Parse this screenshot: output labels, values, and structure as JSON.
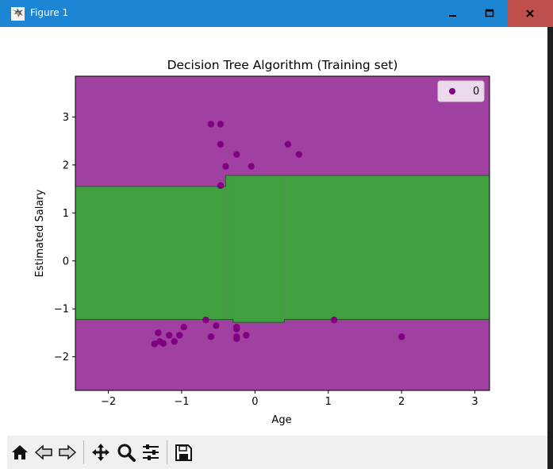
{
  "window": {
    "title": "Figure 1",
    "icons": [
      "figure-app-icon",
      "minimize-icon",
      "maximize-icon",
      "close-icon"
    ]
  },
  "toolbar": {
    "buttons": [
      "home-icon",
      "back-icon",
      "forward-icon",
      "pan-icon",
      "zoom-icon",
      "subplots-icon",
      "save-icon"
    ]
  },
  "chart_data": {
    "type": "scatter",
    "title": "Decision Tree Algorithm (Training set)",
    "xlabel": "Age",
    "ylabel": "Estimated Salary",
    "xlim": [
      -2.45,
      3.2
    ],
    "ylim": [
      -2.7,
      3.85
    ],
    "xticks": [
      -2,
      -1,
      0,
      1,
      2,
      3
    ],
    "xtick_labels": [
      "−2",
      "−1",
      "0",
      "1",
      "2",
      "3"
    ],
    "yticks": [
      -2,
      -1,
      0,
      1,
      2,
      3
    ],
    "ytick_labels": [
      "−2",
      "−1",
      "0",
      "1",
      "2",
      "3"
    ],
    "grid": false,
    "legend": {
      "entries": [
        "0"
      ],
      "location": "top-right"
    },
    "colors": {
      "background_region": "#a040a0",
      "class1_region": "#40a040",
      "points": "#800080"
    },
    "decision_regions": {
      "class_0_color": "#a040a0",
      "class_1_color": "#40a040",
      "class_1_band": [
        {
          "x_from": -2.45,
          "x_to": -0.4,
          "y_from": -1.22,
          "y_to": 1.55
        },
        {
          "x_from": -0.4,
          "x_to": -0.3,
          "y_from": -1.22,
          "y_to": 1.78
        },
        {
          "x_from": -0.3,
          "x_to": 0.4,
          "y_from": -1.28,
          "y_to": 1.78
        },
        {
          "x_from": 0.4,
          "x_to": 3.2,
          "y_from": -1.22,
          "y_to": 1.78
        }
      ]
    },
    "series": [
      {
        "name": "0",
        "color": "#800080",
        "x": [
          -0.6,
          -0.47,
          -0.47,
          -0.4,
          -0.25,
          -0.05,
          -0.47,
          0.45,
          0.6,
          -1.37,
          -1.3,
          -1.32,
          -1.25,
          -1.17,
          -1.1,
          -1.03,
          -0.97,
          -0.67,
          -0.6,
          -0.53,
          -0.25,
          -0.25,
          -0.25,
          -0.25,
          -0.12,
          1.08,
          2.0
        ],
        "y": [
          2.85,
          2.85,
          2.43,
          1.97,
          2.22,
          1.97,
          1.57,
          2.43,
          2.22,
          -1.73,
          -1.68,
          -1.5,
          -1.72,
          -1.55,
          -1.68,
          -1.55,
          -1.38,
          -1.23,
          -1.58,
          -1.35,
          -1.38,
          -1.42,
          -1.58,
          -1.62,
          -1.55,
          -1.23,
          -1.58
        ]
      }
    ]
  }
}
